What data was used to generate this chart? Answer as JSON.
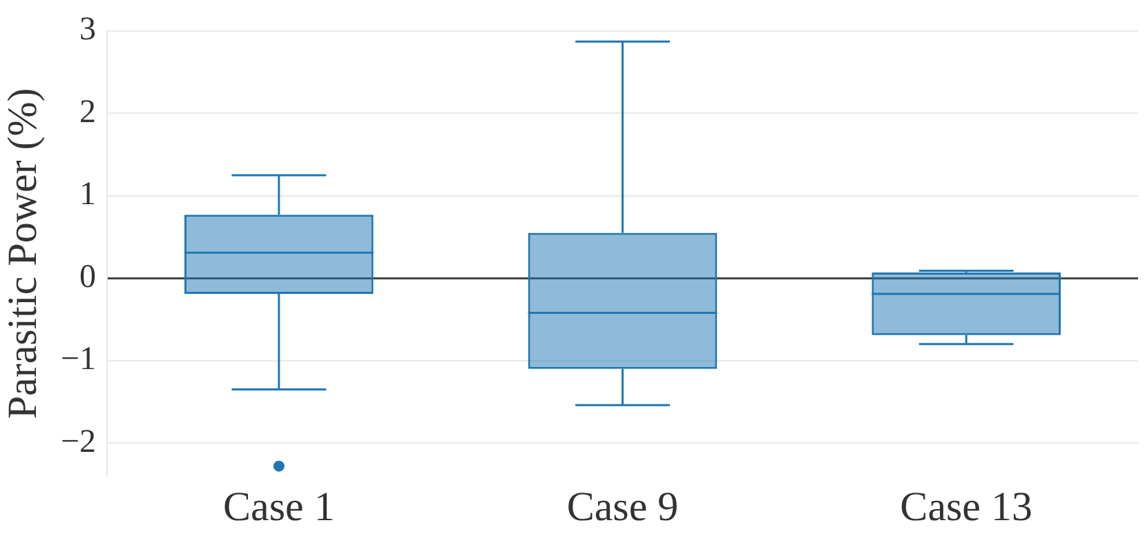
{
  "chart_data": {
    "type": "box",
    "ylabel": "Parasitic Power (%)",
    "categories": [
      "Case 1",
      "Case 9",
      "Case 13"
    ],
    "color": "#1f77b4",
    "boxes": [
      {
        "low": -1.35,
        "q1": -0.19,
        "median": 0.31,
        "q3": 0.77,
        "high": 1.25,
        "outliers": [
          -2.28
        ]
      },
      {
        "low": -1.54,
        "q1": -1.1,
        "median": -0.42,
        "q3": 0.55,
        "high": 2.87
      },
      {
        "low": -0.8,
        "q1": -0.69,
        "median": -0.19,
        "q3": 0.07,
        "high": 0.09
      }
    ],
    "ylim": [
      -2.4,
      3
    ],
    "yticks": [
      {
        "value": -2,
        "label": "−2"
      },
      {
        "value": -1,
        "label": "−1"
      },
      0,
      1,
      2,
      3
    ],
    "grid": "y"
  }
}
